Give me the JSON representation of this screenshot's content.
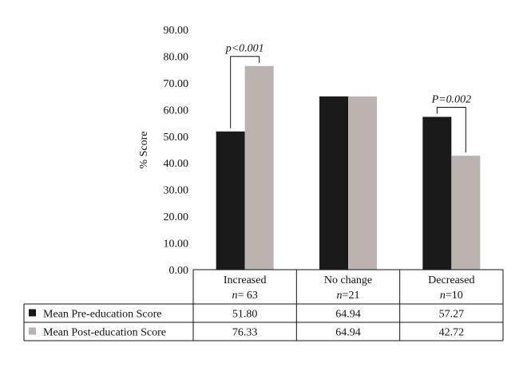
{
  "chart_data": {
    "type": "bar",
    "ylabel": "% Score",
    "ylim": [
      0,
      90
    ],
    "yticks": [
      "0.00",
      "10.00",
      "20.00",
      "30.00",
      "40.00",
      "50.00",
      "60.00",
      "70.00",
      "80.00",
      "90.00"
    ],
    "categories": [
      {
        "name": "Increased",
        "n_prefix": "n",
        "n_value": "= 63"
      },
      {
        "name": "No change",
        "n_prefix": "n",
        "n_value": "=21"
      },
      {
        "name": "Decreased",
        "n_prefix": "n",
        "n_value": "=10"
      }
    ],
    "series": [
      {
        "name": "Mean Pre-education Score",
        "color": "#1a1a1a",
        "values": [
          51.8,
          64.94,
          57.27
        ],
        "labels": [
          "51.80",
          "64.94",
          "57.27"
        ]
      },
      {
        "name": "Mean Post-education Score",
        "color": "#bbb3b0",
        "values": [
          76.33,
          64.94,
          42.72
        ],
        "labels": [
          "76.33",
          "64.94",
          "42.72"
        ]
      }
    ],
    "annotations": [
      {
        "category_index": 0,
        "text": "p<0.001"
      },
      {
        "category_index": 2,
        "text": "P=0.002"
      }
    ],
    "grid": false,
    "legend": "table-below"
  }
}
